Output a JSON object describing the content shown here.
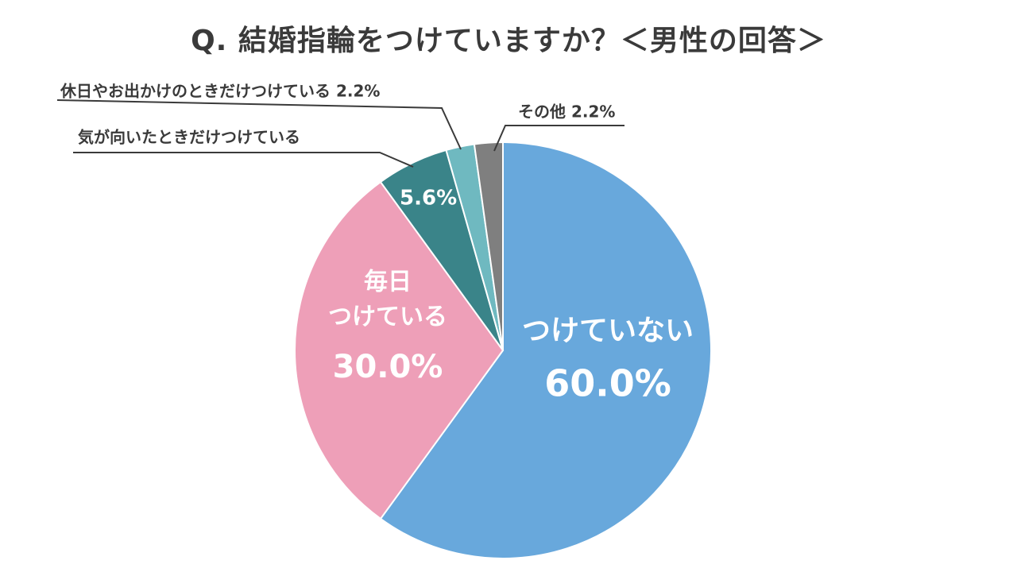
{
  "title": "Q. 結婚指輪をつけていますか？＜男性の回答＞",
  "chart_data": {
    "type": "pie",
    "title": "Q. 結婚指輪をつけていますか？＜男性の回答＞",
    "start_angle_deg": 0,
    "direction": "clockwise",
    "slices": [
      {
        "name": "つけていない",
        "value": 60.0,
        "value_label": "60.0%",
        "color": "#68a8dc",
        "label_style": "inside-large",
        "label_lines": [
          "つけていない"
        ]
      },
      {
        "name": "毎日つけている",
        "value": 30.0,
        "value_label": "30.0%",
        "color": "#ee9fb8",
        "label_style": "inside",
        "label_lines": [
          "毎日",
          "つけている"
        ]
      },
      {
        "name": "気が向いたときだけつけている",
        "value": 5.6,
        "value_label": "5.6%",
        "color": "#3a8489",
        "label_style": "inside-value-outside-name",
        "label_lines": [
          "気が向いたときだけつけている"
        ]
      },
      {
        "name": "休日やお出かけのときだけつけている",
        "value": 2.2,
        "value_label": "2.2%",
        "color": "#6fb9c0",
        "label_style": "outside",
        "label_lines": [
          "休日やお出かけのときだけつけている 2.2%"
        ]
      },
      {
        "name": "その他",
        "value": 2.2,
        "value_label": "2.2%",
        "color": "#7f7f7f",
        "label_style": "outside",
        "label_lines": [
          "その他 2.2%"
        ]
      }
    ]
  }
}
